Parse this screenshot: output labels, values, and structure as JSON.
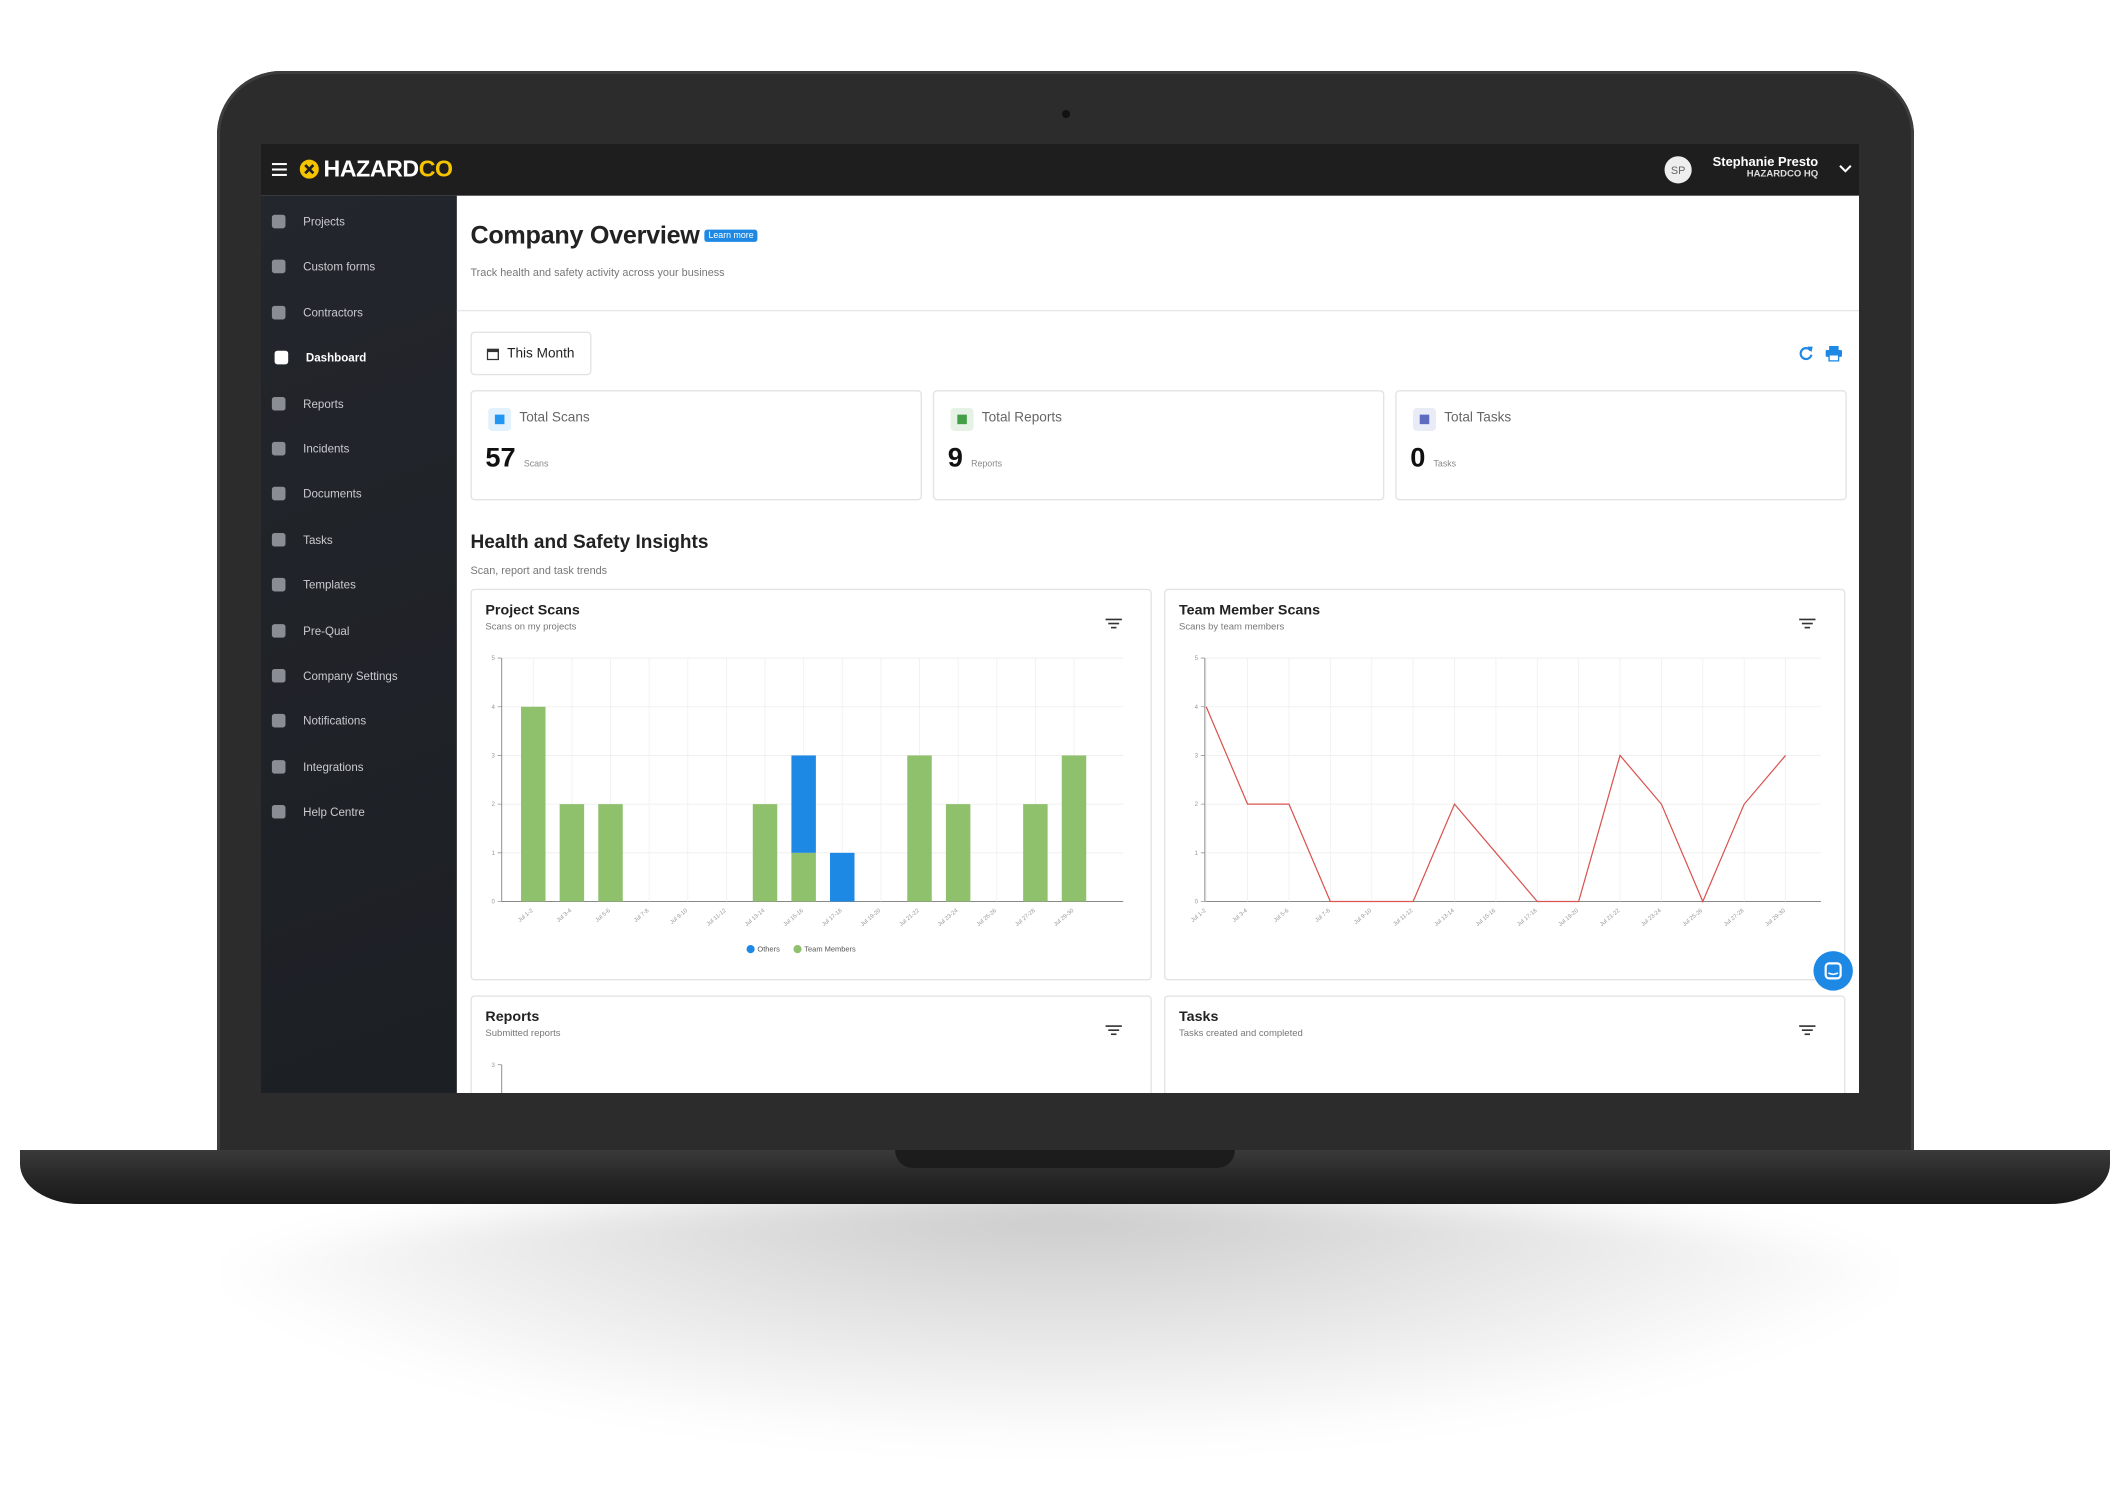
{
  "topbar": {
    "logo": "HAZARD",
    "logo_accent": "CO",
    "avatar": "SP",
    "user_name": "Stephanie Presto",
    "user_org": "HAZARDCO HQ"
  },
  "sidebar": {
    "items": [
      "Projects",
      "Custom forms",
      "Contractors",
      "Dashboard",
      "Reports",
      "Incidents",
      "Documents",
      "Tasks",
      "Templates",
      "Pre-Qual",
      "Company Settings",
      "Notifications",
      "Integrations",
      "Help Centre"
    ],
    "active": 3
  },
  "page": {
    "title": "Company Overview",
    "learn_more": "Learn more",
    "subtitle": "Track health and safety activity across your business",
    "period": "This Month"
  },
  "stats": [
    {
      "label": "Total Scans",
      "value": 57,
      "unit": "Scans",
      "color": "#2196f3"
    },
    {
      "label": "Total Reports",
      "value": 9,
      "unit": "Reports",
      "color": "#43a047"
    },
    {
      "label": "Total Tasks",
      "value": 0,
      "unit": "Tasks",
      "color": "#5c6bc0"
    }
  ],
  "insights": {
    "title": "Health and Safety Insights",
    "subtitle": "Scan, report and task trends"
  },
  "chart_data": [
    {
      "type": "bar",
      "title": "Project Scans",
      "subtitle": "Scans on my projects",
      "stacked": true,
      "grid": true,
      "categories": [
        "Jul 1-2",
        "Jul 3-4",
        "Jul 5-6",
        "Jul 7-8",
        "Jul 9-10",
        "Jul 11-12",
        "Jul 13-14",
        "Jul 15-16",
        "Jul 17-18",
        "Jul 19-20",
        "Jul 21-22",
        "Jul 23-24",
        "Jul 25-26",
        "Jul 27-28",
        "Jul 29-30"
      ],
      "series": [
        {
          "name": "Others",
          "color": "#1e88e5",
          "values": [
            0,
            0,
            0,
            0,
            0,
            0,
            0,
            2,
            1,
            0,
            0,
            0,
            0,
            0,
            0
          ]
        },
        {
          "name": "Team Members",
          "color": "#8fc06c",
          "values": [
            4,
            2,
            2,
            0,
            0,
            0,
            2,
            1,
            0,
            0,
            3,
            2,
            0,
            2,
            3
          ]
        }
      ],
      "ylim": [
        0,
        5
      ],
      "yticks": [
        0,
        1,
        2,
        3,
        4,
        5
      ]
    },
    {
      "type": "line",
      "title": "Team Member Scans",
      "subtitle": "Scans by team members",
      "grid": true,
      "categories": [
        "Jul 1-2",
        "Jul 3-4",
        "Jul 5-6",
        "Jul 7-8",
        "Jul 9-10",
        "Jul 11-12",
        "Jul 13-14",
        "Jul 15-16",
        "Jul 17-18",
        "Jul 19-20",
        "Jul 21-22",
        "Jul 23-24",
        "Jul 25-26",
        "Jul 27-28",
        "Jul 29-30"
      ],
      "values": [
        4,
        2,
        2,
        0,
        0,
        0,
        2,
        1,
        0,
        0,
        3,
        2,
        0,
        2,
        3
      ],
      "color": "#d9534f",
      "ylim": [
        0,
        5
      ],
      "yticks": [
        0,
        1,
        2,
        3,
        4,
        5
      ]
    },
    {
      "type": "bar",
      "title": "Reports",
      "subtitle": "Submitted reports",
      "ylim": [
        0,
        3
      ],
      "yticks": [
        3
      ]
    },
    {
      "type": "bar",
      "title": "Tasks",
      "subtitle": "Tasks created and completed"
    }
  ]
}
